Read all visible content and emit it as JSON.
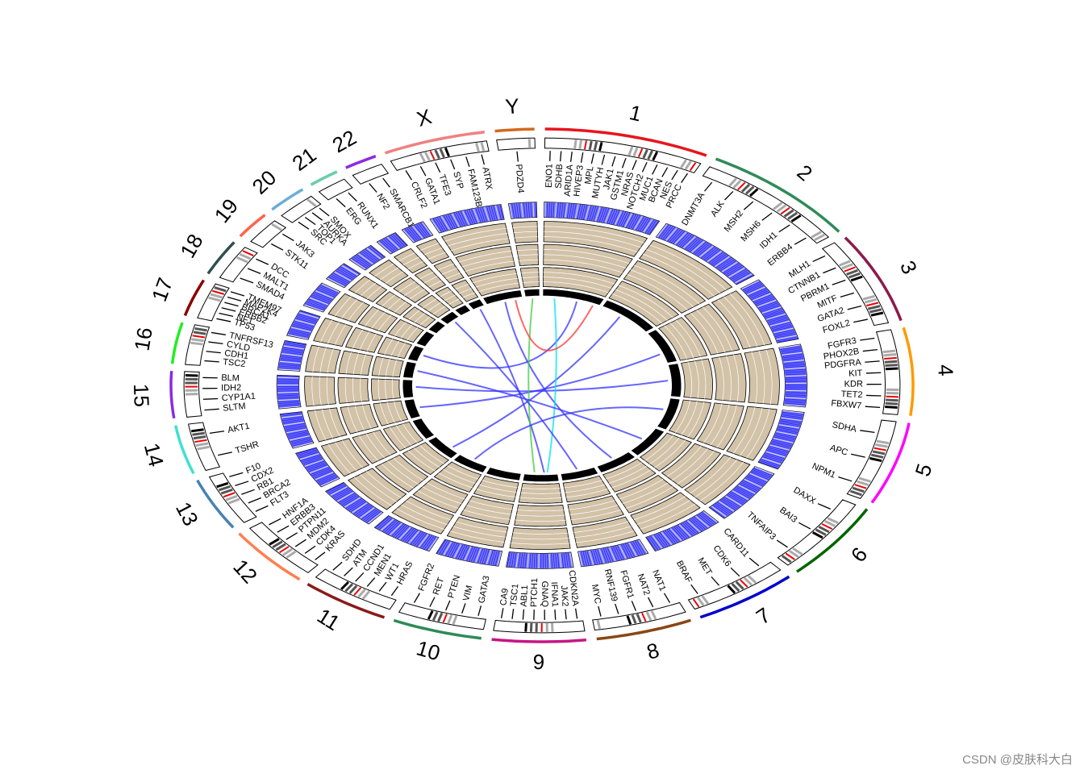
{
  "chart_data": {
    "type": "circos",
    "chromosomes": [
      {
        "name": "1",
        "length": 249,
        "color": "#e8141c",
        "genes": [
          "ENO1",
          "SDHB",
          "ARID1A",
          "HIVEP3",
          "MPL",
          "MUTYH",
          "JAK1",
          "GSTM1",
          "NRAS",
          "NOTCH2",
          "MUC1",
          "BCAN",
          "NES",
          "PRCC"
        ]
      },
      {
        "name": "2",
        "length": 243,
        "color": "#2e8b57",
        "genes": [
          "DNMT3A",
          "ALK",
          "MSH2",
          "MSH6",
          "IDH1",
          "ERBB4"
        ]
      },
      {
        "name": "3",
        "length": 198,
        "color": "#8b1a4a",
        "genes": [
          "MLH1",
          "CTNNB1",
          "PBRM1",
          "MITF",
          "GATA2",
          "FOXL2"
        ]
      },
      {
        "name": "4",
        "length": 191,
        "color": "#ff9a00",
        "genes": [
          "FGFR3",
          "PHOX2B",
          "PDGFRA",
          "KIT",
          "KDR",
          "TET2",
          "FBXW7"
        ]
      },
      {
        "name": "5",
        "length": 181,
        "color": "#ff00ff",
        "genes": [
          "SDHA",
          "APC",
          "NPM1"
        ]
      },
      {
        "name": "6",
        "length": 171,
        "color": "#006400",
        "genes": [
          "DAXX",
          "BAI3",
          "TNFAIP3"
        ]
      },
      {
        "name": "7",
        "length": 159,
        "color": "#0000cd",
        "genes": [
          "CARD11",
          "CDK6",
          "MET",
          "BRAF"
        ]
      },
      {
        "name": "8",
        "length": 146,
        "color": "#8b4513",
        "genes": [
          "NAT1",
          "NAT2",
          "FGFR1",
          "RNF139",
          "MYC"
        ]
      },
      {
        "name": "9",
        "length": 141,
        "color": "#c71585",
        "genes": [
          "CDKN2A",
          "JAK2",
          "IFNA1",
          "GNAQ",
          "PTCH1",
          "ABL1",
          "TSC1",
          "CA9"
        ]
      },
      {
        "name": "10",
        "length": 136,
        "color": "#2e8b57",
        "genes": [
          "GATA3",
          "VIM",
          "PTEN",
          "RET",
          "FGFR2"
        ]
      },
      {
        "name": "11",
        "length": 135,
        "color": "#8b1a1a",
        "genes": [
          "HRAS",
          "WT1",
          "MEN1",
          "CCND1",
          "ATM",
          "SDHD"
        ]
      },
      {
        "name": "12",
        "length": 134,
        "color": "#ff7f50",
        "genes": [
          "KRAS",
          "CDK4",
          "MDM2",
          "PTPN11",
          "ERBB3",
          "HNF1A"
        ]
      },
      {
        "name": "13",
        "length": 115,
        "color": "#4682b4",
        "genes": [
          "FLT3",
          "BRCA2",
          "RB1",
          "CDX2",
          "F10"
        ]
      },
      {
        "name": "14",
        "length": 107,
        "color": "#40e0d0",
        "genes": [
          "TSHR",
          "AKT1"
        ]
      },
      {
        "name": "15",
        "length": 102,
        "color": "#8a2be2",
        "genes": [
          "SLTM",
          "CYP1A1",
          "IDH2",
          "BLM"
        ]
      },
      {
        "name": "16",
        "length": 90,
        "color": "#22ee22",
        "genes": [
          "TSC2",
          "CDH1",
          "CYLD",
          "TNFRSF13"
        ]
      },
      {
        "name": "17",
        "length": 81,
        "color": "#8b0000",
        "genes": [
          "TP53",
          "NF1",
          "ERBB2",
          "BRCA1",
          "MAP2K4",
          "TMEM97"
        ]
      },
      {
        "name": "18",
        "length": 78,
        "color": "#2f4f4f",
        "genes": [
          "SMAD4",
          "MALT1",
          "DCC"
        ]
      },
      {
        "name": "19",
        "length": 59,
        "color": "#ff6347",
        "genes": [
          "STK11",
          "JAK3"
        ]
      },
      {
        "name": "20",
        "length": 63,
        "color": "#6baed6",
        "genes": [
          "SRC",
          "TOP1",
          "AURKA",
          "SMOX"
        ]
      },
      {
        "name": "21",
        "length": 48,
        "color": "#66cdaa",
        "genes": [
          "ERG",
          "RUNX1"
        ]
      },
      {
        "name": "22",
        "length": 51,
        "color": "#8a2be2",
        "genes": [
          "NF2",
          "SMARCB1"
        ]
      },
      {
        "name": "X",
        "length": 155,
        "color": "#f08080",
        "genes": [
          "CRLF2",
          "GATA1",
          "TFE3",
          "SYP",
          "FAM123B",
          "ATRX"
        ]
      },
      {
        "name": "Y",
        "length": 59,
        "color": "#d2691e",
        "genes": [
          "PDZD4"
        ]
      }
    ],
    "links": [
      {
        "from": "1",
        "from_pos": 0.6,
        "to": "17",
        "to_pos": 0.5,
        "color": "#3333ff"
      },
      {
        "from": "2",
        "from_pos": 0.4,
        "to": "12",
        "to_pos": 0.3,
        "color": "#3333ff"
      },
      {
        "from": "3",
        "from_pos": 0.7,
        "to": "14",
        "to_pos": 0.5,
        "color": "#3333ff"
      },
      {
        "from": "4",
        "from_pos": 0.5,
        "to": "15",
        "to_pos": 0.6,
        "color": "#3333ff"
      },
      {
        "from": "7",
        "from_pos": 0.5,
        "to": "X",
        "to_pos": 0.5,
        "color": "#3333ff"
      },
      {
        "from": "9",
        "from_pos": 0.4,
        "to": "22",
        "to_pos": 0.5,
        "color": "#3333ff"
      },
      {
        "from": "Y",
        "from_pos": 0.5,
        "to": "9",
        "to_pos": 0.7,
        "color": "#44cc44"
      },
      {
        "from": "1",
        "from_pos": 0.2,
        "to": "9",
        "to_pos": 0.3,
        "color": "#00e5ee"
      },
      {
        "from": "11",
        "from_pos": 0.5,
        "to": "5",
        "to_pos": 0.4,
        "color": "#3333ff"
      },
      {
        "from": "16",
        "from_pos": 0.5,
        "to": "6",
        "to_pos": 0.5,
        "color": "#3333ff"
      },
      {
        "from": "X",
        "from_pos": 0.8,
        "to": "1",
        "to_pos": 0.9,
        "color": "#ff3333"
      },
      {
        "from": "20",
        "from_pos": 0.5,
        "to": "8",
        "to_pos": 0.5,
        "color": "#3333ff"
      }
    ]
  },
  "watermark": "CSDN @皮肤科大白"
}
